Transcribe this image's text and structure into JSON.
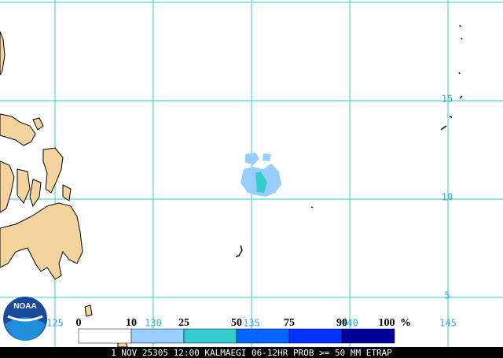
{
  "map": {
    "lat_labels": [
      15,
      10,
      5
    ],
    "lon_labels": [
      125,
      130,
      135,
      140,
      145
    ],
    "legend": {
      "ticks": [
        0,
        10,
        25,
        50,
        75,
        90,
        100
      ],
      "unit": "%",
      "colors": [
        "#ffffff",
        "#99ccff",
        "#33cccc",
        "#0066ff",
        "#0033ff",
        "#000099"
      ]
    },
    "logo": "NOAA",
    "footer": "1 NOV 25305 12:00 KALMAEGI 06-12HR PROB >= 50 MM ETRAP"
  }
}
